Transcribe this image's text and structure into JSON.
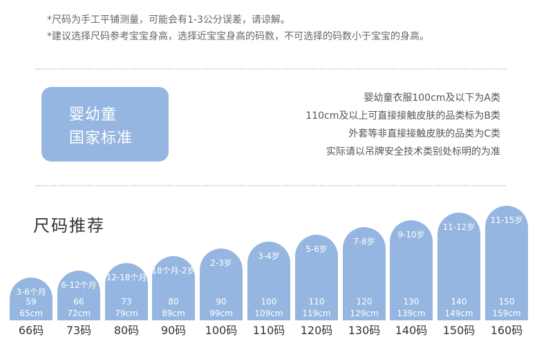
{
  "notes": [
    "*尺码为手工平铺测量，可能会有1-3公分误差，请谅解。",
    "*建议选择尺码参考宝宝身高，选择近宝宝身高的码数，不可选择的码数小于宝宝的身高。"
  ],
  "standard_box": {
    "line1": "婴幼童",
    "line2": "国家标准",
    "color": "#95b6e0"
  },
  "rules": [
    "婴幼童衣服100cm及以下为A类",
    "110cm及以上可直接接触皮肤的品类标为B类",
    "外套等非直接接触皮肤的品类为C类",
    "实际请以吊牌安全技术类别处标明的为准"
  ],
  "recommend_title": "尺码推荐",
  "sizes": [
    {
      "age": "3-6个月",
      "num": "59",
      "cm": "65cm",
      "label": "66码"
    },
    {
      "age": "6-12个月",
      "num": "66",
      "cm": "72cm",
      "label": "73码"
    },
    {
      "age": "12-18个月",
      "num": "73",
      "cm": "79cm",
      "label": "80码"
    },
    {
      "age": "18个月-2岁",
      "num": "80",
      "cm": "89cm",
      "label": "90码"
    },
    {
      "age": "2-3岁",
      "num": "90",
      "cm": "99cm",
      "label": "100码"
    },
    {
      "age": "3-4岁",
      "num": "100",
      "cm": "109cm",
      "label": "110码"
    },
    {
      "age": "5-6岁",
      "num": "110",
      "cm": "119cm",
      "label": "120码"
    },
    {
      "age": "7-8岁",
      "num": "120",
      "cm": "129cm",
      "label": "130码"
    },
    {
      "age": "9-10岁",
      "num": "130",
      "cm": "139cm",
      "label": "140码"
    },
    {
      "age": "11-12岁",
      "num": "140",
      "cm": "149cm",
      "label": "150码"
    },
    {
      "age": "11-15岁",
      "num": "150",
      "cm": "159cm",
      "label": "160码"
    }
  ]
}
